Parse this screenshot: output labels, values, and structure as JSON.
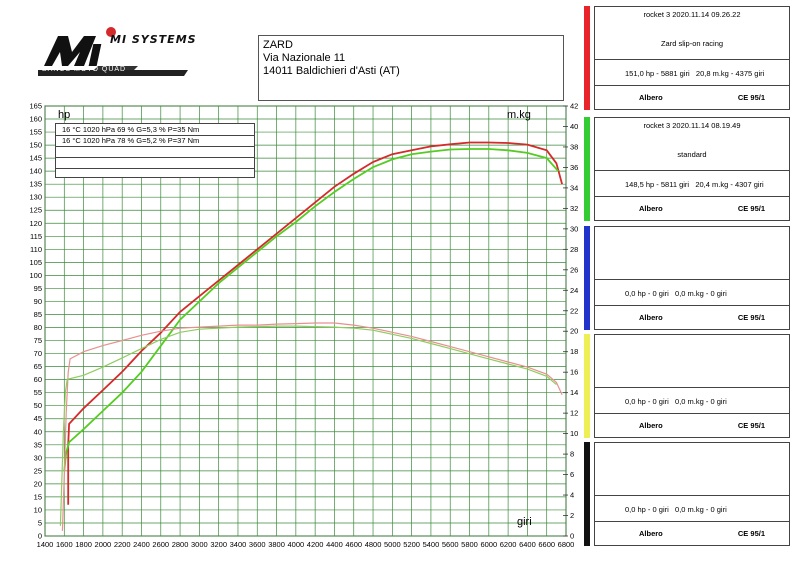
{
  "logo": {
    "brand": "MI SYSTEMS",
    "tagline": "BANCS MOTO QUAD"
  },
  "customer": {
    "name": "ZARD",
    "street": "Via Nazionale 11",
    "city": "14011 Baldichieri d'Asti (AT)"
  },
  "legend_rows": [
    "16 °C   1020 hPa   69 %   G=5,3 %   P=35 Nm",
    "16 °C   1020 hPa   78 %   G=5,2 %   P=37 Nm"
  ],
  "panels": [
    {
      "color": "#e8242a",
      "header": "rocket 3     2020.11.14 09.26.22",
      "description": "Zard slip-on racing",
      "power": "151,0 hp - 5881 giri",
      "torque": "20,8 m.kg - 4375 giri",
      "shaft": "Albero",
      "standard": "CE 95/1"
    },
    {
      "color": "#33cc33",
      "header": "rocket 3     2020.11.14 08.19.49",
      "description": "standard",
      "power": "148,5 hp - 5811 giri",
      "torque": "20,4 m.kg - 4307 giri",
      "shaft": "Albero",
      "standard": "CE 95/1"
    },
    {
      "color": "#2233cc",
      "header": "",
      "description": "",
      "power": "0,0 hp - 0 giri",
      "torque": "0,0 m.kg - 0 giri",
      "shaft": "Albero",
      "standard": "CE 95/1"
    },
    {
      "color": "#eeee55",
      "header": "",
      "description": "",
      "power": "0,0 hp - 0 giri",
      "torque": "0,0 m.kg - 0 giri",
      "shaft": "Albero",
      "standard": "CE 95/1"
    },
    {
      "color": "#111111",
      "header": "",
      "description": "",
      "power": "0,0 hp - 0 giri",
      "torque": "0,0 m.kg - 0 giri",
      "shaft": "Albero",
      "standard": "CE 95/1"
    }
  ],
  "chart_data": {
    "type": "line",
    "xlabel": "giri",
    "ylabel_left": "hp",
    "ylabel_right": "m.kg",
    "xlim": [
      1400,
      6800
    ],
    "ylim_left": [
      0,
      165
    ],
    "ylim_right": [
      0,
      42
    ],
    "x_ticks": [
      1400,
      1600,
      1800,
      2000,
      2200,
      2400,
      2600,
      2800,
      3000,
      3200,
      3400,
      3600,
      3800,
      4000,
      4200,
      4400,
      4600,
      4800,
      5000,
      5200,
      5400,
      5600,
      5800,
      6000,
      6200,
      6400,
      6600,
      6800
    ],
    "y_ticks_left": [
      0,
      5,
      10,
      15,
      20,
      25,
      30,
      35,
      40,
      45,
      50,
      55,
      60,
      65,
      70,
      75,
      80,
      85,
      90,
      95,
      100,
      105,
      110,
      115,
      120,
      125,
      130,
      135,
      140,
      145,
      150,
      155,
      160,
      165
    ],
    "y_ticks_right": [
      0,
      2,
      4,
      6,
      8,
      10,
      12,
      14,
      16,
      18,
      20,
      22,
      24,
      26,
      28,
      30,
      32,
      34,
      36,
      38,
      40,
      42
    ],
    "grid": true,
    "series": [
      {
        "name": "Zard slip-on racing",
        "quantity": "hp",
        "color": "#d42a2a",
        "points": [
          [
            1640,
            12
          ],
          [
            1640,
            35
          ],
          [
            1650,
            43
          ],
          [
            1800,
            49
          ],
          [
            2000,
            56
          ],
          [
            2200,
            63
          ],
          [
            2400,
            71
          ],
          [
            2600,
            78
          ],
          [
            2800,
            86
          ],
          [
            3000,
            92
          ],
          [
            3200,
            98
          ],
          [
            3400,
            104
          ],
          [
            3600,
            110
          ],
          [
            3800,
            116
          ],
          [
            4000,
            122
          ],
          [
            4200,
            128
          ],
          [
            4400,
            134
          ],
          [
            4600,
            139
          ],
          [
            4800,
            143.5
          ],
          [
            5000,
            146.5
          ],
          [
            5200,
            148
          ],
          [
            5400,
            149.5
          ],
          [
            5600,
            150.3
          ],
          [
            5800,
            151
          ],
          [
            6000,
            151
          ],
          [
            6200,
            150.8
          ],
          [
            6400,
            150.2
          ],
          [
            6600,
            148
          ],
          [
            6700,
            143
          ],
          [
            6760,
            135
          ]
        ]
      },
      {
        "name": "standard",
        "quantity": "hp",
        "color": "#55cc22",
        "points": [
          [
            1600,
            25
          ],
          [
            1620,
            32
          ],
          [
            1650,
            36
          ],
          [
            1800,
            41
          ],
          [
            2000,
            48
          ],
          [
            2200,
            55
          ],
          [
            2400,
            63
          ],
          [
            2600,
            73
          ],
          [
            2800,
            83
          ],
          [
            3000,
            90
          ],
          [
            3200,
            97
          ],
          [
            3400,
            103
          ],
          [
            3600,
            109
          ],
          [
            3800,
            115
          ],
          [
            4000,
            120.5
          ],
          [
            4200,
            126.5
          ],
          [
            4400,
            132
          ],
          [
            4600,
            137
          ],
          [
            4800,
            141.5
          ],
          [
            5000,
            144.5
          ],
          [
            5200,
            146.5
          ],
          [
            5400,
            147.5
          ],
          [
            5600,
            148.3
          ],
          [
            5800,
            148.5
          ],
          [
            6000,
            148.5
          ],
          [
            6200,
            148
          ],
          [
            6400,
            147
          ],
          [
            6600,
            145
          ],
          [
            6720,
            140
          ]
        ]
      },
      {
        "name": "Zard slip-on racing",
        "quantity": "m.kg",
        "color": "#e89090",
        "points": [
          [
            1580,
            0.5
          ],
          [
            1600,
            6
          ],
          [
            1620,
            12
          ],
          [
            1640,
            16
          ],
          [
            1660,
            17.3
          ],
          [
            1800,
            18
          ],
          [
            2000,
            18.6
          ],
          [
            2200,
            19.1
          ],
          [
            2400,
            19.6
          ],
          [
            2600,
            20
          ],
          [
            2800,
            20.3
          ],
          [
            3000,
            20.4
          ],
          [
            3200,
            20.5
          ],
          [
            3400,
            20.6
          ],
          [
            3600,
            20.6
          ],
          [
            3800,
            20.7
          ],
          [
            4000,
            20.75
          ],
          [
            4200,
            20.8
          ],
          [
            4400,
            20.8
          ],
          [
            4600,
            20.6
          ],
          [
            4800,
            20.3
          ],
          [
            5000,
            19.9
          ],
          [
            5200,
            19.5
          ],
          [
            5400,
            19
          ],
          [
            5600,
            18.5
          ],
          [
            5800,
            18
          ],
          [
            6000,
            17.5
          ],
          [
            6200,
            17
          ],
          [
            6400,
            16.5
          ],
          [
            6600,
            15.8
          ],
          [
            6700,
            15
          ],
          [
            6760,
            13.8
          ]
        ]
      },
      {
        "name": "standard",
        "quantity": "m.kg",
        "color": "#90cc60",
        "points": [
          [
            1560,
            1
          ],
          [
            1570,
            4
          ],
          [
            1590,
            10
          ],
          [
            1610,
            14
          ],
          [
            1630,
            15.3
          ],
          [
            1800,
            15.7
          ],
          [
            2000,
            16.5
          ],
          [
            2200,
            17.4
          ],
          [
            2400,
            18.3
          ],
          [
            2600,
            19.2
          ],
          [
            2800,
            19.9
          ],
          [
            3000,
            20.2
          ],
          [
            3200,
            20.3
          ],
          [
            3400,
            20.4
          ],
          [
            3600,
            20.45
          ],
          [
            3800,
            20.5
          ],
          [
            4000,
            20.5
          ],
          [
            4200,
            20.45
          ],
          [
            4400,
            20.4
          ],
          [
            4600,
            20.3
          ],
          [
            4800,
            20.1
          ],
          [
            5000,
            19.7
          ],
          [
            5200,
            19.3
          ],
          [
            5400,
            18.8
          ],
          [
            5600,
            18.3
          ],
          [
            5800,
            17.8
          ],
          [
            6000,
            17.3
          ],
          [
            6200,
            16.8
          ],
          [
            6400,
            16.3
          ],
          [
            6600,
            15.6
          ],
          [
            6700,
            14.8
          ]
        ]
      }
    ]
  }
}
